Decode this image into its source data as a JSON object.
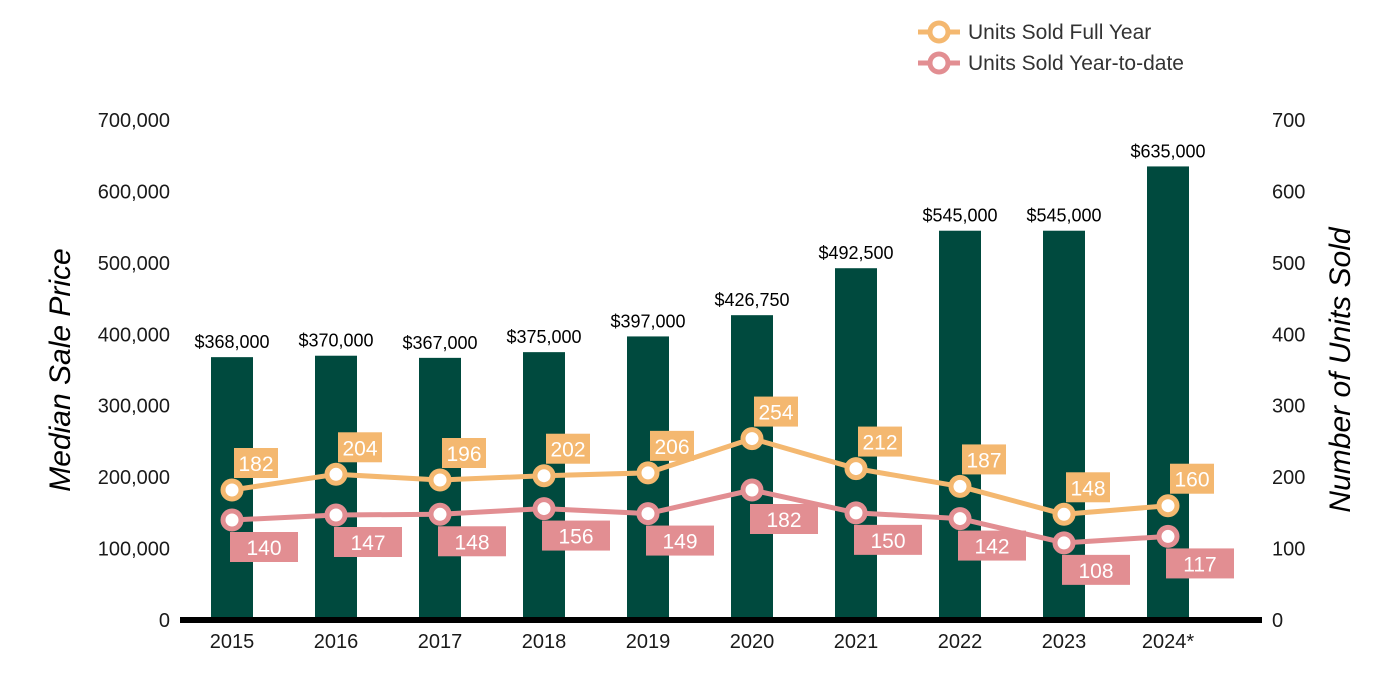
{
  "chart_data": {
    "type": "bar",
    "categories": [
      "2015",
      "2016",
      "2017",
      "2018",
      "2019",
      "2020",
      "2021",
      "2022",
      "2023",
      "2024*"
    ],
    "bar_values": [
      368000,
      370000,
      367000,
      375000,
      397000,
      426750,
      492500,
      545000,
      545000,
      635000
    ],
    "bar_labels": [
      "$368,000",
      "$370,000",
      "$367,000",
      "$375,000",
      "$397,000",
      "$426,750",
      "$492,500",
      "$545,000",
      "$545,000",
      "$635,000"
    ],
    "ylabel": "Median Sale Price",
    "y2label": "Number of Units Sold",
    "ylim": [
      0,
      700000
    ],
    "y2lim": [
      0,
      700
    ],
    "yticks": [
      "0",
      "100,000",
      "200,000",
      "300,000",
      "400,000",
      "500,000",
      "600,000",
      "700,000"
    ],
    "y2ticks": [
      "0",
      "100",
      "200",
      "300",
      "400",
      "500",
      "600",
      "700"
    ],
    "series": [
      {
        "name": "Units Sold Full Year",
        "type": "line",
        "axis": "right",
        "values": [
          182,
          204,
          196,
          202,
          206,
          254,
          212,
          187,
          148,
          160
        ],
        "color": "#F4B870"
      },
      {
        "name": "Units Sold Year-to-date",
        "type": "line",
        "axis": "right",
        "values": [
          140,
          147,
          148,
          156,
          149,
          182,
          150,
          142,
          108,
          117
        ],
        "color": "#E28E92"
      }
    ],
    "bar_color": "#004A3E",
    "grid": false,
    "legend_position": "top-right"
  }
}
